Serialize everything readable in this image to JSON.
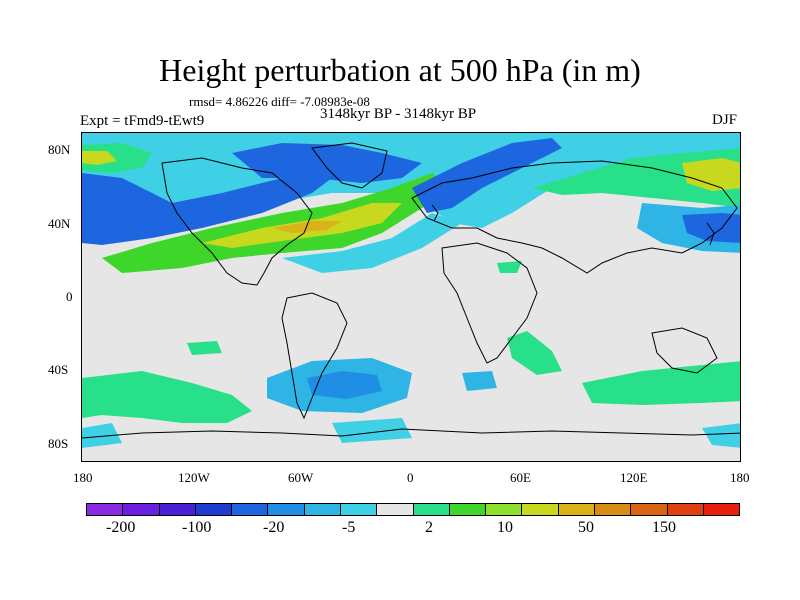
{
  "title": "Height perturbation at 500 hPa (in m)",
  "stats": "rmsd= 4.86226 diff= -7.08983e-08",
  "subtitle": "3148kyr BP - 3148kyr BP",
  "experiment": "Expt = tFmd9-tEwt9",
  "season": "DJF",
  "map": {
    "projection": "cylindrical-equidistant",
    "lon_range": [
      -180,
      180
    ],
    "lat_range": [
      -90,
      90
    ],
    "background_color": "#e6e6e6",
    "lat_ticks": [
      "80N",
      "40N",
      "0",
      "40S",
      "80S"
    ],
    "lon_ticks": [
      "180",
      "120W",
      "60W",
      "0",
      "60E",
      "120E",
      "180"
    ]
  },
  "colorbar": {
    "colors": [
      "#8a2be2",
      "#6a1fe0",
      "#4b1fd6",
      "#1f3bd1",
      "#1e66e0",
      "#1f8fe6",
      "#2fb4e6",
      "#3fd0e6",
      "#e6e6e6",
      "#28e08a",
      "#3ed62a",
      "#8fe02a",
      "#c8d81e",
      "#d8b41a",
      "#d88c18",
      "#d86414",
      "#e04010",
      "#e6200c"
    ],
    "labels": [
      "-200",
      "-100",
      "-20",
      "-5",
      "2",
      "10",
      "50",
      "150"
    ]
  },
  "perturbation_regions": [
    {
      "level": "-5",
      "color": "#3fd0e6",
      "desc": "arctic-band"
    },
    {
      "level": "-20",
      "color": "#1e66e0",
      "desc": "north-pacific-low"
    },
    {
      "level": "10",
      "color": "#3ed62a",
      "desc": "north-america-atlantic-high"
    },
    {
      "level": "50",
      "color": "#c8d81e",
      "desc": "atlantic-core"
    },
    {
      "level": "-20",
      "color": "#1e66e0",
      "desc": "europe-siberia-low"
    },
    {
      "level": "2",
      "color": "#28e08a",
      "desc": "east-asia-high"
    },
    {
      "level": "-5",
      "color": "#2fb4e6",
      "desc": "south-atlantic-low"
    },
    {
      "level": "2",
      "color": "#28e08a",
      "desc": "southern-ocean-high"
    }
  ]
}
